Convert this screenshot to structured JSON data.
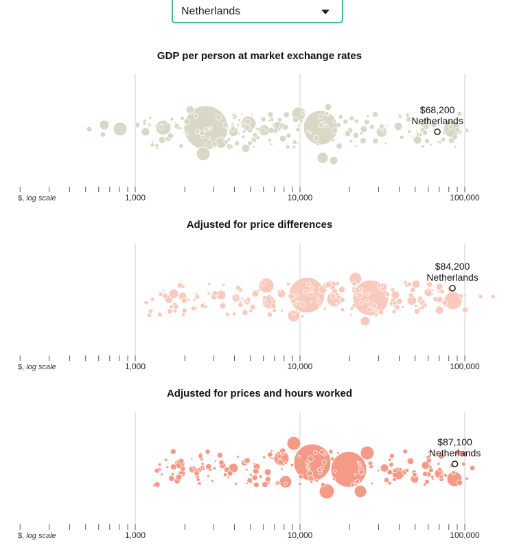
{
  "selector": {
    "value": "Netherlands"
  },
  "colors": {
    "panel1": "#d9d8c6",
    "panel2": "#f9c9bd",
    "panel3": "#f59a86",
    "grid": "#cfcfcf",
    "highlight_stroke": "#222222",
    "selector_border": "#3fb99b"
  },
  "axis": {
    "scale": "log",
    "ticks": [
      1000,
      10000,
      100000
    ],
    "tick_labels": [
      "1,000",
      "10,000",
      "100,000"
    ],
    "label_prefix": "$,",
    "label_suffix": "log scale"
  },
  "chart_data": [
    {
      "type": "scatter",
      "title": "GDP per person at market exchange rates",
      "highlight": {
        "country": "Netherlands",
        "value": 68200,
        "label": "$68,200"
      }
    },
    {
      "type": "scatter",
      "title": "Adjusted for price differences",
      "highlight": {
        "country": "Netherlands",
        "value": 84200,
        "label": "$84,200"
      }
    },
    {
      "type": "scatter",
      "title": "Adjusted for prices and hours worked",
      "highlight": {
        "country": "Netherlands",
        "value": 87100,
        "label": "$87,100"
      }
    }
  ]
}
